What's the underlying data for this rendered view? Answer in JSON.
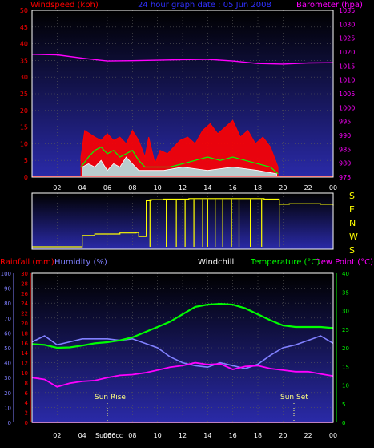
{
  "colors": {
    "background": "#000000",
    "panel_gradient_top": "#000000",
    "panel_gradient_bottom": "#2a2aa8",
    "wind_avg": "#ff0000",
    "wind_gust": "#ffffff",
    "wind_gust_mid": "#00ff00",
    "wind_light": "#b0f0f0",
    "barometer": "#ff00ff",
    "wind_dir": "#ffff00",
    "rain": "#ff00ff",
    "humidity": "#8080ff",
    "temperature": "#00ff00",
    "dewpoint": "#ff00ff",
    "axis_left_wind": "#ff0000",
    "axis_right_baro": "#ff00ff",
    "axis_rain": "#ff0000",
    "axis_hum": "#8080ff",
    "axis_temp": "#00ff00",
    "x_labels": "#ffffff",
    "dir_labels": "#ffff00",
    "sun_label": "#ffff80"
  },
  "header": {
    "windspeed": "Windspeed (kph)",
    "title": "24 hour graph date : 05 Jun 2008",
    "barometer": "Barometer (hpa)"
  },
  "legend2": {
    "rainfall": "Rainfall (mm)",
    "humidity": "Humidity (%)",
    "windchill": "Windchill",
    "temperature": "Temperature (°C)",
    "dewpoint": "Dew Point (°C)"
  },
  "annotations": {
    "sunrise": "Sun Rise",
    "sunset": "Sun Set",
    "sunrise_time": "Sun06cc"
  },
  "direction_labels": [
    "S",
    "E",
    "N",
    "W",
    "S"
  ],
  "chart_data": [
    {
      "type": "line",
      "name": "wind_barometer",
      "x_ticks": [
        "02",
        "04",
        "06",
        "08",
        "10",
        "12",
        "14",
        "16",
        "18",
        "20",
        "22",
        "00"
      ],
      "y_left": {
        "label": "Windspeed (kph)",
        "ticks": [
          0,
          5,
          10,
          15,
          20,
          25,
          30,
          35,
          40,
          45,
          50
        ],
        "range": [
          0,
          50
        ]
      },
      "y_right": {
        "label": "Barometer (hpa)",
        "ticks": [
          975,
          980,
          985,
          990,
          995,
          1000,
          1005,
          1010,
          1015,
          1020,
          1025,
          1030,
          1035
        ],
        "range": [
          975,
          1035
        ]
      },
      "series": [
        {
          "name": "Barometer (hpa)",
          "axis": "right",
          "color": "#ff00ff",
          "x": [
            0,
            2,
            4,
            6,
            8,
            10,
            12,
            14,
            16,
            18,
            20,
            22,
            24
          ],
          "y": [
            1019.2,
            1019.0,
            1017.8,
            1016.8,
            1016.9,
            1017.1,
            1017.3,
            1017.4,
            1016.8,
            1015.9,
            1015.7,
            1016.1,
            1016.2
          ]
        },
        {
          "name": "wind_avg",
          "color": "#ff0000",
          "x": [
            3.9,
            4.2,
            4.6,
            5.0,
            5.5,
            6.0,
            6.5,
            7.0,
            7.5,
            8.0,
            8.5,
            9.0,
            9.3,
            9.8,
            10.2,
            10.8,
            11.3,
            11.8,
            12.4,
            13.0,
            13.6,
            14.2,
            14.8,
            15.4,
            16.0,
            16.6,
            17.2,
            17.8,
            18.4,
            19.0,
            19.6
          ],
          "y": [
            6,
            14,
            13,
            12,
            11,
            13,
            11,
            12,
            10,
            14,
            11,
            6,
            12,
            4,
            8,
            7,
            9,
            11,
            12,
            10,
            14,
            16,
            13,
            15,
            17,
            12,
            14,
            10,
            12,
            9,
            3
          ]
        },
        {
          "name": "wind_gust",
          "color": "#ffffff",
          "x": [
            4.0,
            4.5,
            5.0,
            5.5,
            6.0,
            6.5,
            7.0,
            7.5,
            8.0,
            8.5,
            10.5,
            12.0,
            14.0,
            16.0,
            18.0,
            19.5
          ],
          "y": [
            3,
            4,
            3,
            5,
            2,
            4,
            3,
            6,
            4,
            2,
            2,
            3,
            2,
            3,
            2,
            1
          ]
        },
        {
          "name": "wind_mid",
          "color": "#00ff00",
          "x": [
            3.9,
            4.5,
            5.0,
            5.5,
            6.0,
            6.5,
            7.0,
            7.5,
            8.0,
            8.5,
            9.0,
            10.0,
            11.0,
            12.0,
            13.0,
            14.0,
            15.0,
            16.0,
            17.0,
            18.0,
            19.0,
            19.6
          ],
          "y": [
            3,
            6,
            8,
            9,
            7,
            8,
            6,
            7,
            8,
            5,
            3,
            3,
            3,
            4,
            5,
            6,
            5,
            6,
            5,
            4,
            3,
            1
          ]
        }
      ]
    },
    {
      "type": "line",
      "name": "wind_direction",
      "x_ticks": [
        "02",
        "04",
        "06",
        "08",
        "10",
        "12",
        "14",
        "16",
        "18",
        "20",
        "22",
        "00"
      ],
      "y_labels": [
        "S",
        "E",
        "N",
        "W",
        "S"
      ],
      "series": [
        {
          "name": "direction",
          "color": "#ffff00",
          "x": [
            0,
            3.7,
            4.0,
            5.0,
            7.0,
            8.3,
            8.5,
            9.1,
            9.5,
            10.5,
            11.5,
            12.5,
            13.5,
            14.5,
            15.5,
            16.5,
            17.5,
            18.5,
            19.2,
            19.7,
            20.5,
            22.0,
            23.0,
            24.0
          ],
          "y": [
            0.0,
            0.0,
            0.22,
            0.25,
            0.27,
            0.28,
            0.2,
            0.9,
            0.92,
            0.93,
            0.93,
            0.94,
            0.94,
            0.94,
            0.94,
            0.94,
            0.94,
            0.93,
            0.93,
            0.83,
            0.84,
            0.84,
            0.83,
            0.8
          ]
        }
      ]
    },
    {
      "type": "line",
      "name": "temperature_humidity",
      "x_ticks": [
        "02",
        "04",
        "06",
        "08",
        "10",
        "12",
        "14",
        "16",
        "18",
        "20",
        "22",
        "00"
      ],
      "y_left_rain": {
        "label": "Rainfall (mm)",
        "ticks": [
          0,
          2,
          4,
          6,
          8,
          10,
          12,
          14,
          16,
          18,
          20,
          22,
          24,
          26,
          28,
          30
        ],
        "range": [
          0,
          30
        ]
      },
      "y_left_hum": {
        "label": "Humidity (%)",
        "ticks": [
          0,
          10,
          20,
          30,
          40,
          50,
          60,
          70,
          80,
          90,
          100
        ],
        "range": [
          0,
          100
        ]
      },
      "y_right": {
        "label": "Temperature (°C)",
        "ticks": [
          0,
          5,
          10,
          15,
          20,
          25,
          30,
          35,
          40
        ],
        "range": [
          0,
          40
        ]
      },
      "series": [
        {
          "name": "Temperature (°C)",
          "color": "#00ff00",
          "x": [
            0,
            1,
            2,
            3,
            4,
            5,
            6,
            7,
            8,
            9,
            10,
            11,
            12,
            13,
            14,
            15,
            16,
            17,
            18,
            19,
            20,
            21,
            22,
            23,
            24
          ],
          "y": [
            21.0,
            20.8,
            20.0,
            20.1,
            20.6,
            21.2,
            21.5,
            22.0,
            22.8,
            24.2,
            25.6,
            27.0,
            29.0,
            31.0,
            31.6,
            31.8,
            31.6,
            30.6,
            29.0,
            27.4,
            26.0,
            25.6,
            25.6,
            25.6,
            25.3
          ]
        },
        {
          "name": "Humidity (%)",
          "color": "#8080ff",
          "x": [
            0,
            1,
            2,
            3,
            4,
            5,
            6,
            7,
            8,
            9,
            10,
            11,
            12,
            13,
            14,
            15,
            16,
            17,
            18,
            19,
            20,
            21,
            22,
            23,
            24
          ],
          "y": [
            54,
            58,
            52,
            54,
            56,
            56,
            56,
            55,
            56,
            53,
            50,
            44,
            40,
            38,
            37,
            40,
            38,
            36,
            39,
            45,
            50,
            52,
            55,
            58,
            53
          ]
        },
        {
          "name": "Dew Point (°C)",
          "color": "#ff00ff",
          "x": [
            0,
            1,
            2,
            3,
            4,
            5,
            6,
            7,
            8,
            9,
            10,
            11,
            12,
            13,
            14,
            15,
            16,
            17,
            18,
            19,
            20,
            21,
            22,
            23,
            24
          ],
          "y": [
            12.0,
            11.5,
            9.5,
            10.5,
            11.0,
            11.2,
            12.0,
            12.6,
            12.8,
            13.3,
            14.0,
            14.8,
            15.2,
            16.0,
            15.5,
            15.7,
            14.2,
            15.0,
            15.2,
            14.4,
            14.0,
            13.6,
            13.6,
            13.0,
            12.4
          ]
        },
        {
          "name": "Rainfall (mm)",
          "color": "#ff00ff",
          "x": [
            0,
            24
          ],
          "y": [
            0,
            0
          ]
        }
      ]
    }
  ]
}
